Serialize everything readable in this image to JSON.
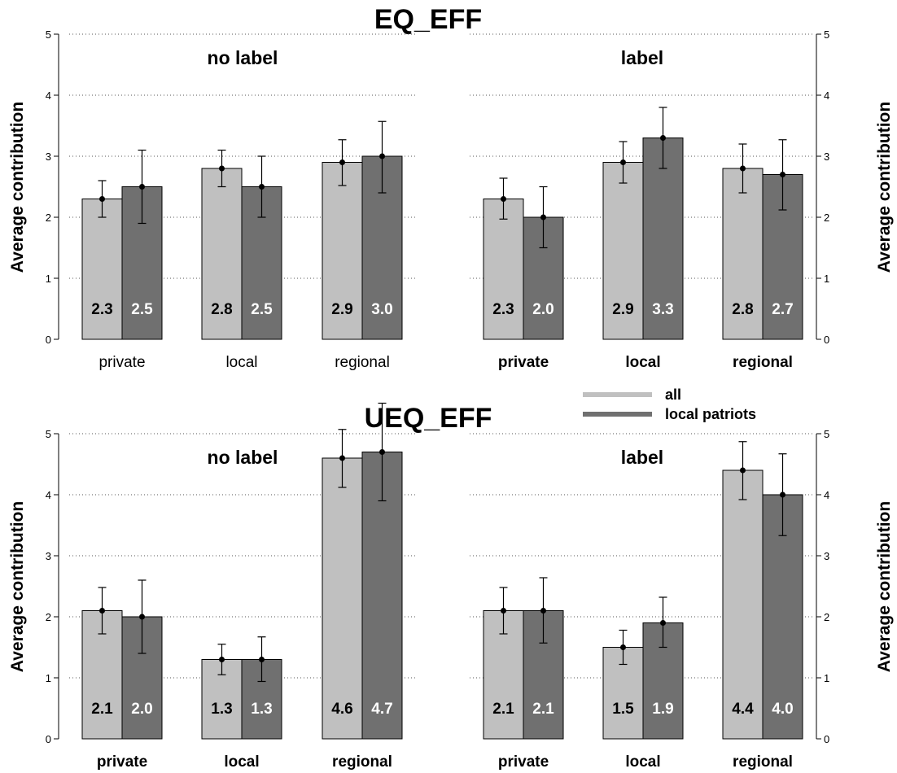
{
  "chart_data": [
    {
      "type": "bar",
      "title": "EQ_EFF",
      "ylabel": "Average contribution",
      "ylim": [
        0,
        5
      ],
      "yticks": [
        0,
        1,
        2,
        3,
        4,
        5
      ],
      "grid": "horizontal dotted",
      "series_names": [
        "all",
        "local patriots"
      ],
      "colors": [
        "#c0c0c0",
        "#707070"
      ],
      "panels": [
        {
          "subtitle": "no label",
          "categories": [
            "private",
            "local",
            "regional"
          ],
          "series": [
            {
              "name": "all",
              "values": [
                2.3,
                2.8,
                2.9
              ],
              "error_low": [
                2.0,
                2.5,
                2.52
              ],
              "error_high": [
                2.6,
                3.1,
                3.27
              ]
            },
            {
              "name": "local patriots",
              "values": [
                2.5,
                2.5,
                3.0
              ],
              "error_low": [
                1.9,
                2.0,
                2.4
              ],
              "error_high": [
                3.1,
                3.0,
                3.57
              ]
            }
          ],
          "labels": [
            [
              "2.3",
              "2.5"
            ],
            [
              "2.8",
              "2.5"
            ],
            [
              "2.9",
              "3.0"
            ]
          ]
        },
        {
          "subtitle": "label",
          "categories": [
            "private",
            "local",
            "regional"
          ],
          "series": [
            {
              "name": "all",
              "values": [
                2.3,
                2.9,
                2.8
              ],
              "error_low": [
                1.97,
                2.56,
                2.4
              ],
              "error_high": [
                2.64,
                3.24,
                3.2
              ]
            },
            {
              "name": "local patriots",
              "values": [
                2.0,
                3.3,
                2.7
              ],
              "error_low": [
                1.5,
                2.8,
                2.12
              ],
              "error_high": [
                2.5,
                3.8,
                3.27
              ]
            }
          ],
          "labels": [
            [
              "2.3",
              "2.0"
            ],
            [
              "2.9",
              "3.3"
            ],
            [
              "2.8",
              "2.7"
            ]
          ]
        }
      ]
    },
    {
      "type": "bar",
      "title": "UEQ_EFF",
      "ylabel": "Average contribution",
      "ylim": [
        0,
        5
      ],
      "yticks": [
        0,
        1,
        2,
        3,
        4,
        5
      ],
      "grid": "horizontal dotted",
      "series_names": [
        "all",
        "local patriots"
      ],
      "colors": [
        "#c0c0c0",
        "#707070"
      ],
      "panels": [
        {
          "subtitle": "no label",
          "categories": [
            "private",
            "local",
            "regional"
          ],
          "series": [
            {
              "name": "all",
              "values": [
                2.1,
                1.3,
                4.6
              ],
              "error_low": [
                1.72,
                1.05,
                4.12
              ],
              "error_high": [
                2.48,
                1.55,
                5.07
              ]
            },
            {
              "name": "local patriots",
              "values": [
                2.0,
                1.3,
                4.7
              ],
              "error_low": [
                1.4,
                0.94,
                3.9
              ],
              "error_high": [
                2.6,
                1.67,
                5.5
              ]
            }
          ],
          "labels": [
            [
              "2.1",
              "2.0"
            ],
            [
              "1.3",
              "1.3"
            ],
            [
              "4.6",
              "4.7"
            ]
          ]
        },
        {
          "subtitle": "label",
          "categories": [
            "private",
            "local",
            "regional"
          ],
          "series": [
            {
              "name": "all",
              "values": [
                2.1,
                1.5,
                4.4
              ],
              "error_low": [
                1.72,
                1.22,
                3.92
              ],
              "error_high": [
                2.48,
                1.78,
                4.87
              ]
            },
            {
              "name": "local patriots",
              "values": [
                2.1,
                1.9,
                4.0
              ],
              "error_low": [
                1.57,
                1.5,
                3.33
              ],
              "error_high": [
                2.64,
                2.32,
                4.67
              ]
            }
          ],
          "labels": [
            [
              "2.1",
              "2.1"
            ],
            [
              "1.5",
              "1.9"
            ],
            [
              "4.4",
              "4.0"
            ]
          ]
        }
      ]
    }
  ],
  "legend": {
    "items": [
      {
        "label": "all",
        "color": "#c0c0c0"
      },
      {
        "label": "local patriots",
        "color": "#707070"
      }
    ]
  }
}
